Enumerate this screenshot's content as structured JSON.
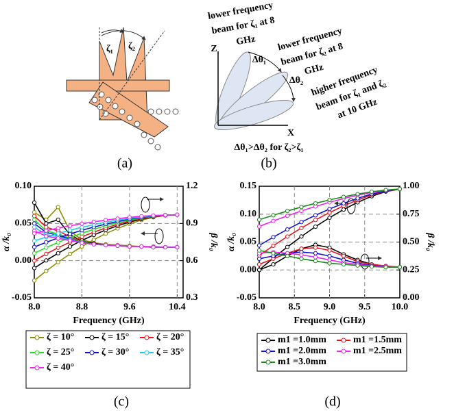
{
  "panel_a": {
    "zeta1": "ζ₁",
    "zeta2": "ζ₂",
    "caption": "(a)"
  },
  "panel_b": {
    "beam1": [
      "lower frequency",
      "beam for ζ₁ at 8",
      "GHz"
    ],
    "beam2": [
      "lower frequency",
      "beam for ζ₂ at 8",
      "GHz"
    ],
    "beam3": [
      "higher frequency",
      "beam for ζ₁ and ζ₂",
      "at 10 GHz"
    ],
    "z_axis": "Z",
    "x_axis": "X",
    "dtheta1": "Δθ₁",
    "dtheta2": "Δθ₂",
    "relation": "Δθ₁>Δθ₂ for ζ₂>ζ₁",
    "caption": "(b)"
  },
  "chart_data": [
    {
      "type": "line",
      "caption": "(c)",
      "xlabel": "Frequency (GHz)",
      "ylabel": "α /k₀",
      "y2label": "β /k₀",
      "grid": true,
      "x": [
        8.0,
        8.2,
        8.4,
        8.6,
        8.8,
        9.0,
        9.2,
        9.4,
        9.6,
        9.8,
        10.0,
        10.2,
        10.4
      ],
      "xlim": [
        8.0,
        10.5
      ],
      "xticks": [
        {
          "value": 8.0,
          "label": "8.0"
        },
        8.8,
        9.6,
        10.4
      ],
      "ylim": [
        -0.05,
        0.1
      ],
      "yticks": [
        -0.05,
        {
          "value": 0.0,
          "label": "0.00"
        },
        0.05,
        {
          "value": 0.1,
          "label": "0.10"
        }
      ],
      "y2lim": [
        0.3,
        1.2
      ],
      "y2ticks": [
        0.3,
        0.6,
        0.9,
        1.2
      ],
      "series": [
        {
          "name": "ζ = 10°",
          "color": "#8b8b00",
          "values": [
            0.065,
            0.055,
            0.072,
            0.04,
            0.028,
            0.024,
            0.022,
            0.021,
            0.02,
            0.019,
            0.019,
            0.018,
            0.018
          ],
          "values_y2": [
            0.44,
            0.517,
            0.588,
            0.654,
            0.714,
            0.769,
            0.818,
            0.86,
            0.897,
            0.927,
            0.949,
            0.964,
            0.97
          ]
        },
        {
          "name": "ζ = 15°",
          "color": "#000000",
          "values": [
            0.078,
            0.05,
            0.055,
            0.035,
            0.026,
            0.023,
            0.021,
            0.02,
            0.019,
            0.019,
            0.018,
            0.018,
            0.018
          ],
          "values_y2": [
            0.54,
            0.602,
            0.66,
            0.714,
            0.763,
            0.807,
            0.847,
            0.881,
            0.911,
            0.935,
            0.953,
            0.965,
            0.97
          ]
        },
        {
          "name": "ζ = 20°",
          "color": "#e8141c",
          "values": [
            0.06,
            0.045,
            0.04,
            0.032,
            0.025,
            0.022,
            0.021,
            0.02,
            0.019,
            0.019,
            0.018,
            0.018,
            0.018
          ],
          "values_y2": [
            0.6,
            0.654,
            0.704,
            0.749,
            0.792,
            0.83,
            0.864,
            0.893,
            0.919,
            0.94,
            0.955,
            0.966,
            0.97
          ]
        },
        {
          "name": "ζ = 25°",
          "color": "#22dd22",
          "values": [
            0.055,
            0.04,
            0.036,
            0.03,
            0.025,
            0.022,
            0.021,
            0.02,
            0.019,
            0.019,
            0.018,
            0.018,
            0.018
          ],
          "values_y2": [
            0.66,
            0.705,
            0.747,
            0.785,
            0.821,
            0.853,
            0.881,
            0.906,
            0.927,
            0.945,
            0.958,
            0.967,
            0.97
          ]
        },
        {
          "name": "ζ = 30°",
          "color": "#1010cc",
          "values": [
            0.05,
            0.038,
            0.034,
            0.029,
            0.024,
            0.022,
            0.021,
            0.02,
            0.019,
            0.019,
            0.018,
            0.018,
            0.018
          ],
          "values_y2": [
            0.71,
            0.748,
            0.783,
            0.815,
            0.845,
            0.871,
            0.895,
            0.916,
            0.934,
            0.949,
            0.96,
            0.967,
            0.97
          ]
        },
        {
          "name": "ζ = 35°",
          "color": "#22ccee",
          "values": [
            0.045,
            0.035,
            0.032,
            0.028,
            0.024,
            0.022,
            0.021,
            0.02,
            0.019,
            0.019,
            0.018,
            0.018,
            0.018
          ],
          "values_y2": [
            0.76,
            0.79,
            0.819,
            0.845,
            0.869,
            0.89,
            0.91,
            0.927,
            0.941,
            0.953,
            0.962,
            0.968,
            0.97
          ]
        },
        {
          "name": "ζ = 40°",
          "color": "#ee22ee",
          "values": [
            0.04,
            0.033,
            0.03,
            0.027,
            0.024,
            0.022,
            0.021,
            0.02,
            0.019,
            0.019,
            0.018,
            0.018,
            0.018
          ],
          "values_y2": [
            0.82,
            0.842,
            0.862,
            0.881,
            0.898,
            0.913,
            0.927,
            0.939,
            0.949,
            0.958,
            0.964,
            0.968,
            0.97
          ]
        }
      ]
    },
    {
      "type": "line",
      "caption": "(d)",
      "xlabel": "Frequency (GHz)",
      "ylabel": "α /k₀",
      "y2label": "β /k₀",
      "grid": true,
      "x": [
        8.0,
        8.2,
        8.4,
        8.6,
        8.8,
        9.0,
        9.2,
        9.4,
        9.6,
        9.8,
        10.0
      ],
      "xlim": [
        8.0,
        10.0
      ],
      "xticks": [
        {
          "value": 8.0,
          "label": "8.0"
        },
        8.5,
        {
          "value": 9.0,
          "label": "9.0"
        },
        9.5,
        {
          "value": 10.0,
          "label": "10.0"
        }
      ],
      "ylim": [
        -0.05,
        0.15
      ],
      "yticks": [
        -0.05,
        {
          "value": 0.0,
          "label": "0.00"
        },
        0.05,
        {
          "value": 0.1,
          "label": "0.10"
        },
        0.15
      ],
      "y2lim": [
        0.0,
        1.0
      ],
      "y2ticks": [
        {
          "value": 0.0,
          "label": "0.00"
        },
        0.25,
        {
          "value": 0.5,
          "label": "0.50"
        },
        0.75,
        {
          "value": 1.0,
          "label": "1.00"
        }
      ],
      "series": [
        {
          "name": "m1 =1.0mm",
          "color": "#000000",
          "values": [
            0.0,
            0.01,
            0.025,
            0.038,
            0.045,
            0.04,
            0.028,
            0.018,
            0.01,
            0.007,
            0.005
          ],
          "values_y2": [
            0.25,
            0.356,
            0.456,
            0.55,
            0.638,
            0.718,
            0.791,
            0.856,
            0.91,
            0.952,
            0.975
          ]
        },
        {
          "name": "m1 =1.5mm",
          "color": "#e8141c",
          "values": [
            0.01,
            0.02,
            0.03,
            0.038,
            0.04,
            0.035,
            0.025,
            0.015,
            0.01,
            0.007,
            0.005
          ],
          "values_y2": [
            0.38,
            0.467,
            0.549,
            0.626,
            0.698,
            0.764,
            0.824,
            0.877,
            0.922,
            0.956,
            0.975
          ]
        },
        {
          "name": "m1 =2.0mm",
          "color": "#1010cc",
          "values": [
            0.02,
            0.025,
            0.03,
            0.032,
            0.03,
            0.025,
            0.018,
            0.012,
            0.008,
            0.006,
            0.005
          ],
          "values_y2": [
            0.47,
            0.544,
            0.613,
            0.679,
            0.74,
            0.796,
            0.847,
            0.892,
            0.93,
            0.959,
            0.975
          ]
        },
        {
          "name": "m1 =2.5mm",
          "color": "#ee22ee",
          "values": [
            0.03,
            0.032,
            0.03,
            0.027,
            0.023,
            0.018,
            0.013,
            0.01,
            0.007,
            0.006,
            0.005
          ],
          "values_y2": [
            0.64,
            0.689,
            0.735,
            0.779,
            0.819,
            0.856,
            0.89,
            0.92,
            0.945,
            0.964,
            0.975
          ]
        },
        {
          "name": "m1 =3.0mm",
          "color": "#1a8a1a",
          "values": [
            0.035,
            0.03,
            0.025,
            0.02,
            0.016,
            0.012,
            0.01,
            0.008,
            0.006,
            0.005,
            0.005
          ],
          "values_y2": [
            0.7,
            0.74,
            0.778,
            0.814,
            0.847,
            0.878,
            0.905,
            0.93,
            0.951,
            0.966,
            0.975
          ]
        }
      ]
    }
  ]
}
